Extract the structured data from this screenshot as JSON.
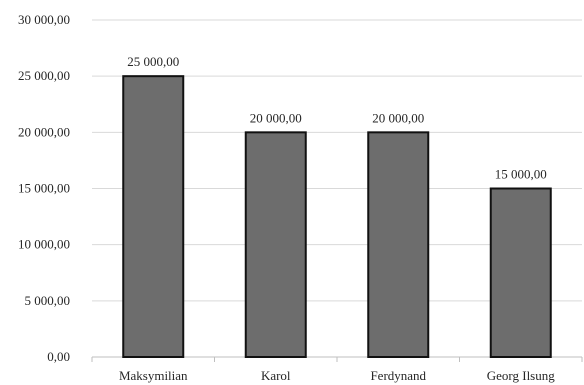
{
  "chart_data": {
    "type": "bar",
    "categories": [
      "Maksymilian",
      "Karol",
      "Ferdynand",
      "Georg Ilsung"
    ],
    "values": [
      25000,
      20000,
      20000,
      15000
    ],
    "data_labels": [
      "25 000,00",
      "20 000,00",
      "20 000,00",
      "15 000,00"
    ],
    "y_ticks": [
      {
        "value": 0,
        "label": "0,00"
      },
      {
        "value": 5000,
        "label": "5 000,00"
      },
      {
        "value": 10000,
        "label": "10 000,00"
      },
      {
        "value": 15000,
        "label": "15 000,00"
      },
      {
        "value": 20000,
        "label": "20 000,00"
      },
      {
        "value": 25000,
        "label": "25 000,00"
      },
      {
        "value": 30000,
        "label": "30 000,00"
      }
    ],
    "ylim": [
      0,
      30000
    ],
    "title": "",
    "xlabel": "",
    "ylabel": "",
    "grid": true,
    "legend": "none",
    "colors": {
      "bar_fill": "#6d6d6d",
      "bar_stroke": "#111111",
      "grid": "#d9d9d9",
      "text": "#262626"
    }
  }
}
